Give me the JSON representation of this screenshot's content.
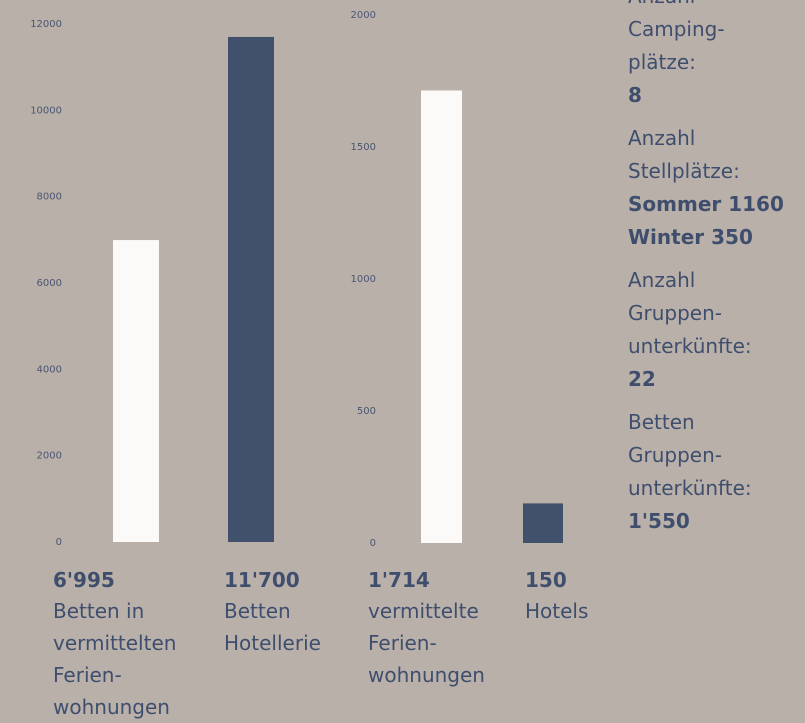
{
  "chart_data": [
    {
      "type": "bar",
      "categories": [
        "Betten in\nvermittelten\nFerien-\nwohnungen",
        "Betten\nHotellerie"
      ],
      "values": [
        6995,
        11700
      ],
      "value_labels": [
        "6'995",
        "11'700"
      ],
      "colors": [
        "#fbfaf8",
        "#41506b"
      ],
      "ylim": [
        0,
        12000
      ],
      "yticks": [
        0,
        2000,
        4000,
        6000,
        8000,
        10000,
        12000
      ]
    },
    {
      "type": "bar",
      "categories": [
        "vermittelte\nFerien-\nwohnungen",
        "Hotels"
      ],
      "values": [
        1714,
        150
      ],
      "value_labels": [
        "1'714",
        "150"
      ],
      "colors": [
        "#fbfaf8",
        "#41506b"
      ],
      "ylim": [
        0,
        2000
      ],
      "yticks": [
        0,
        500,
        1000,
        1500,
        2000
      ]
    }
  ],
  "sidebar": [
    {
      "label": "Anzahl\nCamping-\nplätze:",
      "value": "8"
    },
    {
      "label": "Anzahl\nStellplätze:",
      "value": "Sommer 1160\nWinter 350"
    },
    {
      "label": "Anzahl\nGruppen-\nunterkünfte:",
      "value": "22"
    },
    {
      "label": "Betten\nGruppen-\nunterkünfte:",
      "value": "1'550"
    }
  ]
}
